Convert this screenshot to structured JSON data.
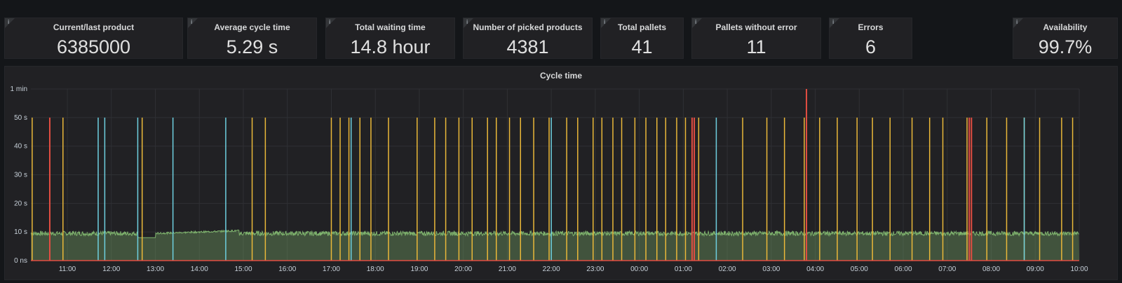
{
  "stats": [
    {
      "title": "Current/last product",
      "value": "6385000"
    },
    {
      "title": "Average cycle time",
      "value": "5.29 s"
    },
    {
      "title": "Total waiting time",
      "value": "14.8 hour"
    },
    {
      "title": "Number of picked products",
      "value": "4381"
    },
    {
      "title": "Total pallets",
      "value": "41"
    },
    {
      "title": "Pallets without error",
      "value": "11"
    },
    {
      "title": "Errors",
      "value": "6"
    },
    {
      "title": "Availability",
      "value": "99.7%"
    }
  ],
  "info_icon": "info-icon",
  "chart_data": {
    "type": "area",
    "title": "Cycle time",
    "y_ticks": [
      "0 ns",
      "10 s",
      "20 s",
      "30 s",
      "40 s",
      "50 s",
      "1 min"
    ],
    "ylim_seconds": [
      0,
      60
    ],
    "x_ticks": [
      "11:00",
      "12:00",
      "13:00",
      "14:00",
      "15:00",
      "16:00",
      "17:00",
      "18:00",
      "19:00",
      "20:00",
      "21:00",
      "22:00",
      "23:00",
      "00:00",
      "01:00",
      "02:00",
      "03:00",
      "04:00",
      "05:00",
      "06:00",
      "07:00",
      "08:00",
      "09:00",
      "10:00"
    ],
    "x_range_hours": [
      10.17,
      34.0
    ],
    "grid": true,
    "series": [
      {
        "color": "#7eb26d",
        "baseline_seconds": 9.5
      },
      {
        "color": "#eab839",
        "value_seconds": 50,
        "hours": [
          10.2,
          10.9,
          12.7,
          15.2,
          15.5,
          17.0,
          17.2,
          17.4,
          17.65,
          17.9,
          18.3,
          18.95,
          19.35,
          19.6,
          19.9,
          20.2,
          20.55,
          20.75,
          21.05,
          21.3,
          21.6,
          21.95,
          22.35,
          22.6,
          22.95,
          23.15,
          23.4,
          23.6,
          23.9,
          24.15,
          24.4,
          24.6,
          24.85,
          25.05,
          25.35,
          26.35,
          26.9,
          27.3,
          27.75,
          28.1,
          28.5,
          28.95,
          29.3,
          29.7,
          30.2,
          30.6,
          30.9,
          31.45,
          31.9,
          32.35,
          32.75,
          33.1,
          33.6,
          33.85
        ]
      },
      {
        "color": "#6ed0e0",
        "value_seconds": 50,
        "hours": [
          11.7,
          11.85,
          12.6,
          13.4,
          14.6,
          17.45,
          22.0,
          25.75,
          32.75
        ]
      },
      {
        "color": "#e24d42",
        "value_seconds": 50,
        "hours": [
          10.6,
          25.2,
          25.25,
          31.5,
          31.55
        ]
      },
      {
        "color": "#e24d42",
        "value_seconds": 60,
        "hours": [
          27.8
        ]
      }
    ]
  }
}
